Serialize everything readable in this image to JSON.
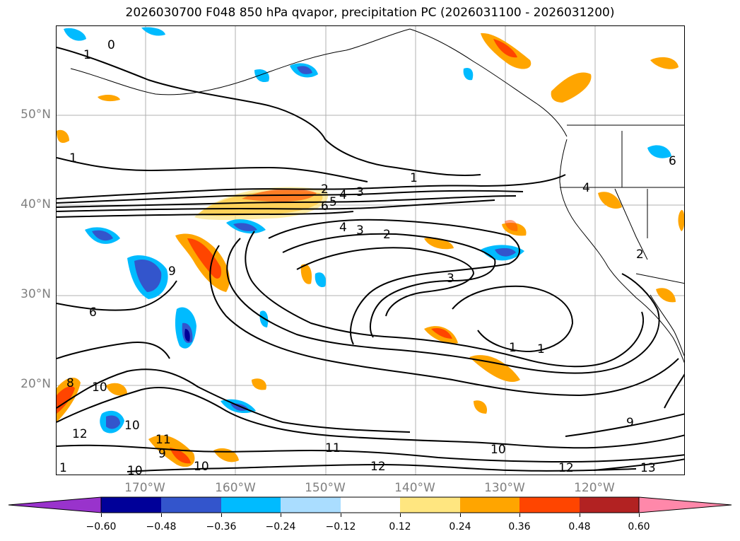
{
  "title": "2026030700 F048 850 hPa qvapor, precipitation PC (2026031100 - 2026031200)",
  "map": {
    "lat_labels": [
      "50°N",
      "40°N",
      "30°N",
      "20°N"
    ],
    "lon_labels": [
      "170°W",
      "160°W",
      "150°W",
      "140°W",
      "130°W",
      "120°W"
    ],
    "contour_labels": [
      "0",
      "1",
      "1",
      "1",
      "1",
      "1",
      "1",
      "2",
      "2",
      "2",
      "3",
      "3",
      "3",
      "4",
      "4",
      "4",
      "5",
      "6",
      "6",
      "6",
      "8",
      "9",
      "9",
      "9",
      "10",
      "10",
      "10",
      "10",
      "10",
      "11",
      "11",
      "12",
      "12",
      "12",
      "13"
    ]
  },
  "colorbar": {
    "colors": [
      "#9933cc",
      "#000099",
      "#3355cc",
      "#00bbff",
      "#aaddff",
      "#ffffff",
      "#ffe680",
      "#ffa500",
      "#ff4500",
      "#b22222",
      "#ff88aa"
    ],
    "ticks": [
      "−0.60",
      "−0.48",
      "−0.36",
      "−0.24",
      "−0.12",
      "0.12",
      "0.24",
      "0.36",
      "0.48",
      "0.60"
    ]
  }
}
